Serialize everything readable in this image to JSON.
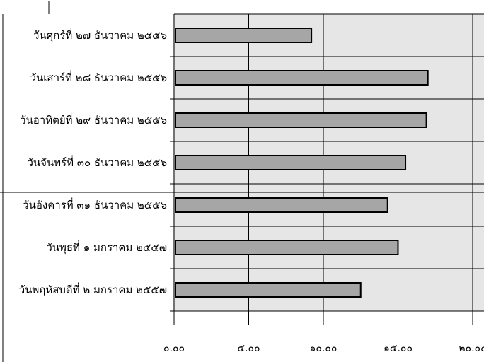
{
  "chart_data": {
    "type": "bar",
    "orientation": "horizontal",
    "categories": [
      "วันศุกร์ที่ ๒๗ ธันวาคม ๒๕๕๖",
      "วันเสาร์ที่ ๒๘ ธันวาคม ๒๕๕๖",
      "วันอาทิตย์ที่ ๒๙ ธันวาคม ๒๕๕๖",
      "วันจันทร์ที่ ๓๐ ธันวาคม ๒๕๕๖",
      "วันอังคารที่ ๓๑ ธันวาคม ๒๕๕๖",
      "วันพุธที่ ๑ มกราคม ๒๕๕๗",
      "วันพฤหัสบดีที่ ๒ มกราคม ๒๕๕๗"
    ],
    "values": [
      9.2,
      17.0,
      16.9,
      15.5,
      14.3,
      15.0,
      12.5
    ],
    "xlim": [
      0,
      20
    ],
    "x_ticks": [
      "๐.๐๐",
      "๕.๐๐",
      "๑๐.๐๐",
      "๑๕.๐๐",
      "๒๐.๐๐"
    ],
    "grid": true,
    "colors": {
      "bar": "#a6a6a6",
      "plot_bg": "#e6e6e6",
      "grid": "#000000"
    }
  }
}
